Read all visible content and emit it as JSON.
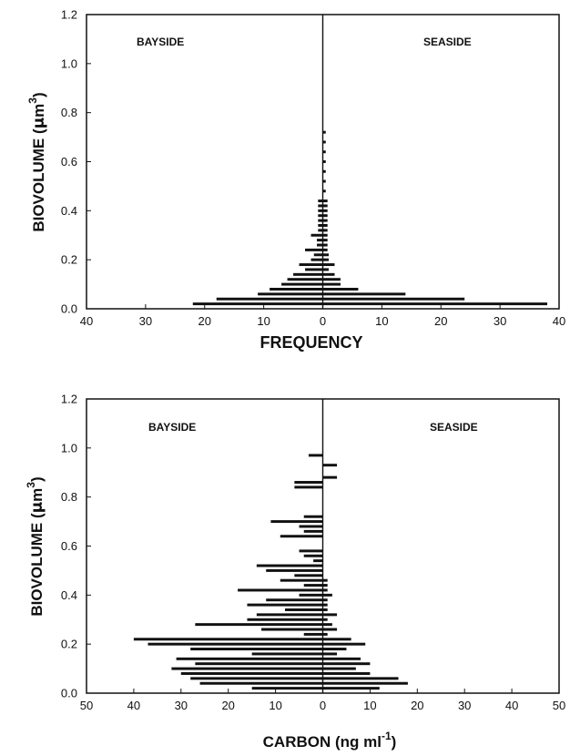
{
  "chart_data": [
    {
      "type": "bar",
      "orientation": "horizontal-diverging",
      "xlabel": "FREQUENCY",
      "ylabel_main": "BIOVOLUME (",
      "ylabel_mu": "μ",
      "ylabel_unit": "m",
      "ylabel_sup": "3",
      "ylabel_close": ")",
      "left_label": "BAYSIDE",
      "right_label": "SEASIDE",
      "xlim": [
        -40,
        40
      ],
      "ylim": [
        0,
        1.2
      ],
      "xticks": [
        -40,
        -30,
        -20,
        -10,
        0,
        10,
        20,
        30,
        40
      ],
      "xtick_labels": [
        "40",
        "30",
        "20",
        "10",
        "0",
        "10",
        "20",
        "30",
        "40"
      ],
      "yticks": [
        0,
        0.2,
        0.4,
        0.6,
        0.8,
        1.0,
        1.2
      ],
      "ytick_labels": [
        "0.0",
        "0.2",
        "0.4",
        "0.6",
        "0.8",
        "1.0",
        "1.2"
      ],
      "bin_width": 0.011,
      "series": [
        {
          "side": "bayside",
          "bars": [
            {
              "y": 0.02,
              "v": 22
            },
            {
              "y": 0.04,
              "v": 18
            },
            {
              "y": 0.06,
              "v": 11
            },
            {
              "y": 0.08,
              "v": 9
            },
            {
              "y": 0.1,
              "v": 7
            },
            {
              "y": 0.12,
              "v": 6
            },
            {
              "y": 0.14,
              "v": 5
            },
            {
              "y": 0.16,
              "v": 3
            },
            {
              "y": 0.18,
              "v": 4
            },
            {
              "y": 0.2,
              "v": 2
            },
            {
              "y": 0.22,
              "v": 1.5
            },
            {
              "y": 0.24,
              "v": 3
            },
            {
              "y": 0.26,
              "v": 1
            },
            {
              "y": 0.28,
              "v": 1
            },
            {
              "y": 0.3,
              "v": 2
            },
            {
              "y": 0.32,
              "v": 0.8
            },
            {
              "y": 0.34,
              "v": 0.8
            },
            {
              "y": 0.36,
              "v": 0.8
            },
            {
              "y": 0.38,
              "v": 0.8
            },
            {
              "y": 0.4,
              "v": 0.8
            },
            {
              "y": 0.42,
              "v": 0.8
            },
            {
              "y": 0.44,
              "v": 0.8
            }
          ]
        },
        {
          "side": "seaside",
          "bars": [
            {
              "y": 0.02,
              "v": 38
            },
            {
              "y": 0.04,
              "v": 24
            },
            {
              "y": 0.06,
              "v": 14
            },
            {
              "y": 0.08,
              "v": 6
            },
            {
              "y": 0.1,
              "v": 3
            },
            {
              "y": 0.12,
              "v": 3
            },
            {
              "y": 0.14,
              "v": 2
            },
            {
              "y": 0.16,
              "v": 1
            },
            {
              "y": 0.18,
              "v": 2
            },
            {
              "y": 0.2,
              "v": 1
            },
            {
              "y": 0.22,
              "v": 1
            },
            {
              "y": 0.24,
              "v": 0.8
            },
            {
              "y": 0.26,
              "v": 0.8
            },
            {
              "y": 0.28,
              "v": 0.8
            },
            {
              "y": 0.3,
              "v": 0.8
            },
            {
              "y": 0.32,
              "v": 0.8
            },
            {
              "y": 0.34,
              "v": 0.8
            },
            {
              "y": 0.36,
              "v": 0.8
            },
            {
              "y": 0.38,
              "v": 0.8
            },
            {
              "y": 0.4,
              "v": 0.8
            },
            {
              "y": 0.42,
              "v": 0.8
            },
            {
              "y": 0.44,
              "v": 0.8
            },
            {
              "y": 0.48,
              "v": 0.5
            },
            {
              "y": 0.52,
              "v": 0.5
            },
            {
              "y": 0.56,
              "v": 0.5
            },
            {
              "y": 0.6,
              "v": 0.5
            },
            {
              "y": 0.64,
              "v": 0.5
            },
            {
              "y": 0.68,
              "v": 0.5
            },
            {
              "y": 0.72,
              "v": 0.5
            }
          ]
        }
      ]
    },
    {
      "type": "bar",
      "orientation": "horizontal-diverging",
      "xlabel_main": "CARBON (ng ml",
      "xlabel_sup": "-1",
      "xlabel_close": ")",
      "ylabel_main": "BIOVOLUME (",
      "ylabel_mu": "μ",
      "ylabel_unit": "m",
      "ylabel_sup": "3",
      "ylabel_close": ")",
      "left_label": "BAYSIDE",
      "right_label": "SEASIDE",
      "xlim": [
        -50,
        50
      ],
      "ylim": [
        0,
        1.2
      ],
      "xticks": [
        -50,
        -40,
        -30,
        -20,
        -10,
        0,
        10,
        20,
        30,
        40,
        50
      ],
      "xtick_labels": [
        "50",
        "40",
        "30",
        "20",
        "10",
        "0",
        "10",
        "20",
        "30",
        "40",
        "50"
      ],
      "yticks": [
        0,
        0.2,
        0.4,
        0.6,
        0.8,
        1.0,
        1.2
      ],
      "ytick_labels": [
        "0.0",
        "0.2",
        "0.4",
        "0.6",
        "0.8",
        "1.0",
        "1.2"
      ],
      "bin_width": 0.011,
      "series": [
        {
          "side": "bayside",
          "bars": [
            {
              "y": 0.02,
              "v": 15
            },
            {
              "y": 0.04,
              "v": 26
            },
            {
              "y": 0.06,
              "v": 28
            },
            {
              "y": 0.08,
              "v": 30
            },
            {
              "y": 0.1,
              "v": 32
            },
            {
              "y": 0.12,
              "v": 27
            },
            {
              "y": 0.14,
              "v": 31
            },
            {
              "y": 0.16,
              "v": 15
            },
            {
              "y": 0.18,
              "v": 28
            },
            {
              "y": 0.2,
              "v": 37
            },
            {
              "y": 0.22,
              "v": 40
            },
            {
              "y": 0.24,
              "v": 4
            },
            {
              "y": 0.26,
              "v": 13
            },
            {
              "y": 0.28,
              "v": 27
            },
            {
              "y": 0.3,
              "v": 16
            },
            {
              "y": 0.32,
              "v": 14
            },
            {
              "y": 0.34,
              "v": 8
            },
            {
              "y": 0.36,
              "v": 16
            },
            {
              "y": 0.38,
              "v": 12
            },
            {
              "y": 0.4,
              "v": 5
            },
            {
              "y": 0.42,
              "v": 18
            },
            {
              "y": 0.44,
              "v": 4
            },
            {
              "y": 0.46,
              "v": 9
            },
            {
              "y": 0.48,
              "v": 6
            },
            {
              "y": 0.5,
              "v": 12
            },
            {
              "y": 0.52,
              "v": 14
            },
            {
              "y": 0.54,
              "v": 2
            },
            {
              "y": 0.56,
              "v": 4
            },
            {
              "y": 0.58,
              "v": 5
            },
            {
              "y": 0.64,
              "v": 9
            },
            {
              "y": 0.66,
              "v": 4
            },
            {
              "y": 0.68,
              "v": 5
            },
            {
              "y": 0.7,
              "v": 11
            },
            {
              "y": 0.72,
              "v": 4
            },
            {
              "y": 0.84,
              "v": 6
            },
            {
              "y": 0.86,
              "v": 6
            },
            {
              "y": 0.97,
              "v": 3
            }
          ]
        },
        {
          "side": "seaside",
          "bars": [
            {
              "y": 0.02,
              "v": 12
            },
            {
              "y": 0.04,
              "v": 18
            },
            {
              "y": 0.06,
              "v": 16
            },
            {
              "y": 0.08,
              "v": 10
            },
            {
              "y": 0.1,
              "v": 7
            },
            {
              "y": 0.12,
              "v": 10
            },
            {
              "y": 0.14,
              "v": 8
            },
            {
              "y": 0.16,
              "v": 3
            },
            {
              "y": 0.18,
              "v": 5
            },
            {
              "y": 0.2,
              "v": 9
            },
            {
              "y": 0.22,
              "v": 6
            },
            {
              "y": 0.24,
              "v": 1
            },
            {
              "y": 0.26,
              "v": 3
            },
            {
              "y": 0.28,
              "v": 2
            },
            {
              "y": 0.3,
              "v": 1
            },
            {
              "y": 0.32,
              "v": 3
            },
            {
              "y": 0.34,
              "v": 1
            },
            {
              "y": 0.36,
              "v": 1
            },
            {
              "y": 0.38,
              "v": 1
            },
            {
              "y": 0.4,
              "v": 2
            },
            {
              "y": 0.42,
              "v": 1
            },
            {
              "y": 0.44,
              "v": 1
            },
            {
              "y": 0.46,
              "v": 1
            },
            {
              "y": 0.88,
              "v": 3
            },
            {
              "y": 0.93,
              "v": 3
            }
          ]
        }
      ]
    }
  ]
}
